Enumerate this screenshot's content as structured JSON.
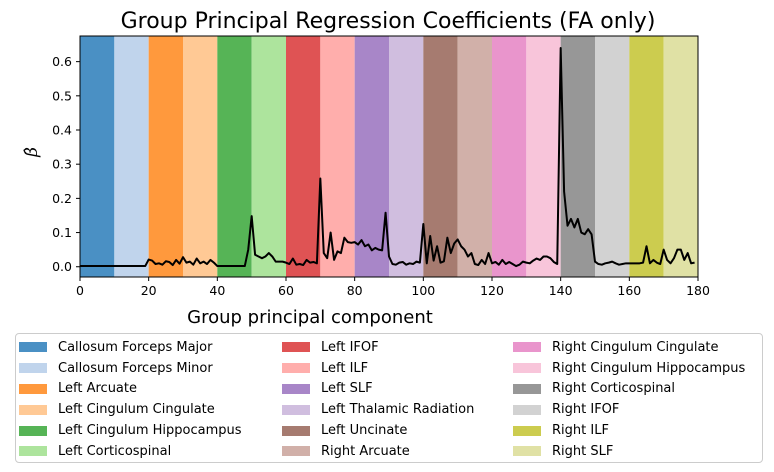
{
  "chart_data": {
    "type": "line",
    "title": "Group Principal Regression Coefficients (FA only)",
    "xlabel": "Group principal component",
    "ylabel": "β̂",
    "xlim": [
      0,
      180
    ],
    "ylim": [
      -0.03,
      0.675
    ],
    "xticks": [
      0,
      20,
      40,
      60,
      80,
      100,
      120,
      140,
      160,
      180
    ],
    "yticks": [
      0.0,
      0.1,
      0.2,
      0.3,
      0.4,
      0.5,
      0.6
    ],
    "ytick_labels": [
      "0.0",
      "0.1",
      "0.2",
      "0.3",
      "0.4",
      "0.5",
      "0.6"
    ],
    "grid": false,
    "legend_position": "below",
    "line_color": "#000000",
    "bands": [
      {
        "label": "Callosum Forceps Major",
        "start": 0,
        "end": 10,
        "color": "#4a90c4"
      },
      {
        "label": "Callosum Forceps Minor",
        "start": 10,
        "end": 20,
        "color": "#c0d4ec"
      },
      {
        "label": "Left Arcuate",
        "start": 20,
        "end": 30,
        "color": "#ff993d"
      },
      {
        "label": "Left Cingulum Cingulate",
        "start": 30,
        "end": 40,
        "color": "#ffc995"
      },
      {
        "label": "Left Cingulum Hippocampus",
        "start": 40,
        "end": 50,
        "color": "#56b456"
      },
      {
        "label": "Left Corticospinal",
        "start": 50,
        "end": 60,
        "color": "#ade49d"
      },
      {
        "label": "Left IFOF",
        "start": 60,
        "end": 70,
        "color": "#df5354"
      },
      {
        "label": "Left ILF",
        "start": 70,
        "end": 80,
        "color": "#ffaeac"
      },
      {
        "label": "Left SLF",
        "start": 80,
        "end": 90,
        "color": "#a886c8"
      },
      {
        "label": "Left Thalamic Radiation",
        "start": 90,
        "end": 100,
        "color": "#d0bedf"
      },
      {
        "label": "Left Uncinate",
        "start": 100,
        "end": 110,
        "color": "#a67b70"
      },
      {
        "label": "Right Arcuate",
        "start": 110,
        "end": 120,
        "color": "#d1b0a9"
      },
      {
        "label": "Right Cingulum Cingulate",
        "start": 120,
        "end": 130,
        "color": "#e995cc"
      },
      {
        "label": "Right Cingulum Hippocampus",
        "start": 130,
        "end": 140,
        "color": "#f8c5da"
      },
      {
        "label": "Right Corticospinal",
        "start": 140,
        "end": 150,
        "color": "#979797"
      },
      {
        "label": "Right IFOF",
        "start": 150,
        "end": 160,
        "color": "#d2d2d2"
      },
      {
        "label": "Right ILF",
        "start": 160,
        "end": 170,
        "color": "#cccc4f"
      },
      {
        "label": "Right SLF",
        "start": 170,
        "end": 180,
        "color": "#e0e1a5"
      }
    ],
    "series": [
      {
        "x": [
          0,
          1,
          2,
          3,
          4,
          5,
          6,
          7,
          8,
          9,
          10,
          11,
          12,
          13,
          14,
          15,
          16,
          17,
          18,
          19,
          20,
          21,
          22,
          23,
          24,
          25,
          26,
          27,
          28,
          29,
          30,
          31,
          32,
          33,
          34,
          35,
          36,
          37,
          38,
          39,
          40,
          41,
          42,
          43,
          44,
          45,
          46,
          47,
          48,
          49,
          50,
          51,
          52,
          53,
          54,
          55,
          56,
          57,
          58,
          59,
          60,
          61,
          62,
          63,
          64,
          65,
          66,
          67,
          68,
          69,
          70,
          71,
          72,
          73,
          74,
          75,
          76,
          77,
          78,
          79,
          80,
          81,
          82,
          83,
          84,
          85,
          86,
          87,
          88,
          89,
          90,
          91,
          92,
          93,
          94,
          95,
          96,
          97,
          98,
          99,
          100,
          101,
          102,
          103,
          104,
          105,
          106,
          107,
          108,
          109,
          110,
          111,
          112,
          113,
          114,
          115,
          116,
          117,
          118,
          119,
          120,
          121,
          122,
          123,
          124,
          125,
          126,
          127,
          128,
          129,
          130,
          131,
          132,
          133,
          134,
          135,
          136,
          137,
          138,
          139,
          140,
          141,
          142,
          143,
          144,
          145,
          146,
          147,
          148,
          149,
          150,
          151,
          152,
          153,
          154,
          155,
          156,
          157,
          158,
          159,
          160,
          161,
          162,
          163,
          164,
          165,
          166,
          167,
          168,
          169,
          170,
          171,
          172,
          173,
          174,
          175,
          176,
          177,
          178,
          179
        ],
        "y": [
          0.002,
          0.002,
          0.002,
          0.002,
          0.002,
          0.002,
          0.002,
          0.002,
          0.002,
          0.002,
          0.002,
          0.002,
          0.002,
          0.002,
          0.002,
          0.002,
          0.002,
          0.002,
          0.002,
          0.002,
          0.021,
          0.018,
          0.008,
          0.01,
          0.006,
          0.016,
          0.014,
          0.005,
          0.02,
          0.009,
          0.028,
          0.012,
          0.015,
          0.006,
          0.024,
          0.01,
          0.015,
          0.008,
          0.02,
          0.012,
          0.002,
          0.002,
          0.002,
          0.002,
          0.002,
          0.002,
          0.002,
          0.002,
          0.002,
          0.05,
          0.148,
          0.035,
          0.03,
          0.025,
          0.03,
          0.04,
          0.03,
          0.015,
          0.015,
          0.015,
          0.012,
          0.008,
          0.024,
          0.006,
          0.008,
          0.005,
          0.02,
          0.012,
          0.014,
          0.01,
          0.258,
          0.04,
          0.025,
          0.1,
          0.02,
          0.045,
          0.04,
          0.085,
          0.072,
          0.07,
          0.072,
          0.065,
          0.078,
          0.06,
          0.065,
          0.048,
          0.055,
          0.05,
          0.048,
          0.158,
          0.03,
          0.008,
          0.006,
          0.012,
          0.014,
          0.006,
          0.01,
          0.008,
          0.015,
          0.012,
          0.125,
          0.01,
          0.09,
          0.018,
          0.06,
          0.012,
          0.016,
          0.085,
          0.04,
          0.068,
          0.08,
          0.06,
          0.05,
          0.03,
          0.04,
          0.008,
          0.005,
          0.02,
          0.008,
          0.04,
          0.01,
          0.014,
          0.006,
          0.02,
          0.008,
          0.014,
          0.008,
          0.002,
          0.006,
          0.015,
          0.012,
          0.01,
          0.018,
          0.024,
          0.02,
          0.03,
          0.03,
          0.025,
          0.014,
          0.008,
          0.64,
          0.22,
          0.12,
          0.14,
          0.115,
          0.14,
          0.1,
          0.095,
          0.11,
          0.095,
          0.015,
          0.008,
          0.006,
          0.01,
          0.012,
          0.015,
          0.01,
          0.006,
          0.008,
          0.01,
          0.01,
          0.01,
          0.01,
          0.01,
          0.012,
          0.06,
          0.01,
          0.02,
          0.012,
          0.008,
          0.05,
          0.02,
          0.01,
          0.025,
          0.05,
          0.05,
          0.02,
          0.04,
          0.01,
          0.012
        ]
      }
    ]
  }
}
